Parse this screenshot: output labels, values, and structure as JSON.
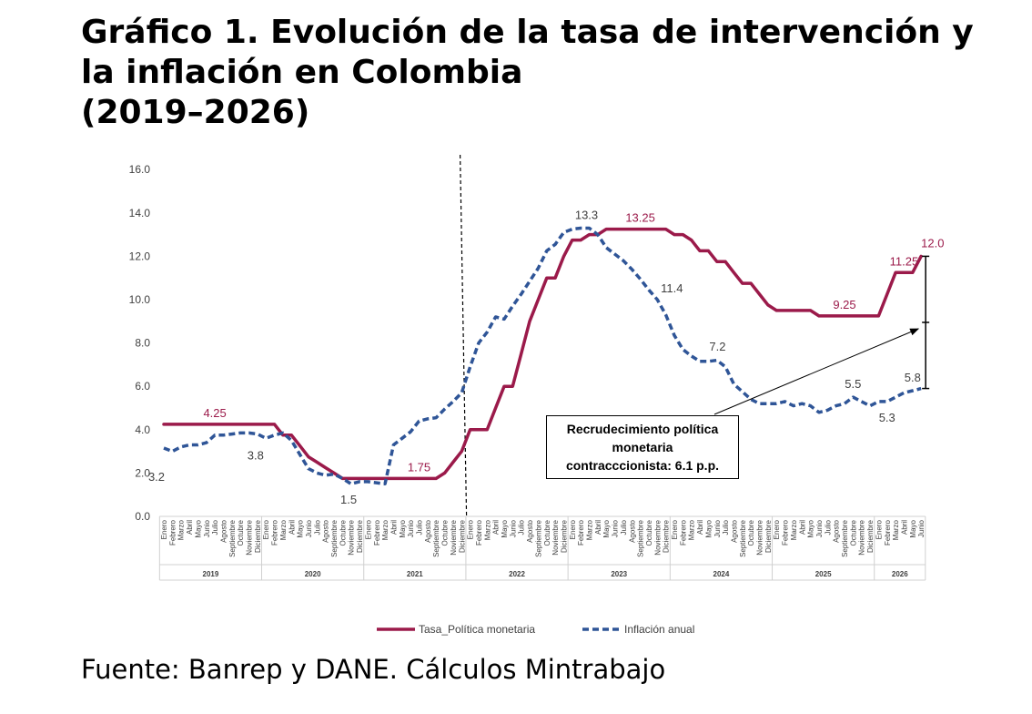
{
  "title_lines": [
    "Gráfico 1. Evolución de la tasa de intervención y",
    "la inflación en Colombia",
    "(2019–2026)"
  ],
  "source": "Fuente: Banrep y DANE. Cálculos Mintrabajo",
  "callout_lines": [
    "Recrudecimiento política",
    "monetaria",
    "contracccionista: 6.1 p.p."
  ],
  "chart_data": {
    "type": "line",
    "ylim": [
      0,
      16
    ],
    "ytick_labels": [
      "0.0",
      "2.0",
      "4.0",
      "6.0",
      "8.0",
      "10.0",
      "12.0",
      "14.0",
      "16.0"
    ],
    "months": [
      "Enero",
      "Febrero",
      "Marzo",
      "Abril",
      "Mayo",
      "Junio",
      "Julio",
      "Agosto",
      "Septiembre",
      "Octubre",
      "Noviembre",
      "Diciembre"
    ],
    "years": [
      {
        "label": "2019",
        "months": 12
      },
      {
        "label": "2020",
        "months": 12
      },
      {
        "label": "2021",
        "months": 12
      },
      {
        "label": "2022",
        "months": 12
      },
      {
        "label": "2023",
        "months": 12
      },
      {
        "label": "2024",
        "months": 12
      },
      {
        "label": "2025",
        "months": 12
      },
      {
        "label": "2026",
        "months": 6
      }
    ],
    "series": [
      {
        "name": "Tasa_Política monetaria",
        "color": "#9b1a4a",
        "style": "solid",
        "values": [
          4.25,
          4.25,
          4.25,
          4.25,
          4.25,
          4.25,
          4.25,
          4.25,
          4.25,
          4.25,
          4.25,
          4.25,
          4.25,
          4.25,
          3.75,
          3.75,
          3.25,
          2.75,
          2.5,
          2.25,
          2.0,
          1.75,
          1.75,
          1.75,
          1.75,
          1.75,
          1.75,
          1.75,
          1.75,
          1.75,
          1.75,
          1.75,
          1.75,
          2.0,
          2.5,
          3.0,
          4.0,
          4.0,
          4.0,
          5.0,
          6.0,
          6.0,
          7.5,
          9.0,
          10.0,
          11.0,
          11.0,
          12.0,
          12.75,
          12.75,
          13.0,
          13.0,
          13.25,
          13.25,
          13.25,
          13.25,
          13.25,
          13.25,
          13.25,
          13.25,
          13.0,
          13.0,
          12.75,
          12.25,
          12.25,
          11.75,
          11.75,
          11.25,
          10.75,
          10.75,
          10.25,
          9.75,
          9.5,
          9.5,
          9.5,
          9.5,
          9.5,
          9.25,
          9.25,
          9.25,
          9.25,
          9.25,
          9.25,
          9.25,
          9.25,
          10.25,
          11.25,
          11.25,
          11.25,
          12.0
        ]
      },
      {
        "name": "Inflación anual",
        "color": "#2f5597",
        "style": "dashed",
        "values": [
          3.15,
          3.0,
          3.2,
          3.3,
          3.3,
          3.4,
          3.75,
          3.75,
          3.8,
          3.85,
          3.85,
          3.8,
          3.6,
          3.75,
          3.85,
          3.5,
          2.85,
          2.2,
          2.0,
          1.9,
          1.95,
          1.75,
          1.5,
          1.6,
          1.6,
          1.55,
          1.5,
          3.3,
          3.6,
          3.9,
          4.4,
          4.5,
          4.55,
          4.95,
          5.3,
          5.7,
          6.9,
          8.0,
          8.5,
          9.2,
          9.1,
          9.7,
          10.25,
          10.85,
          11.45,
          12.25,
          12.55,
          13.1,
          13.25,
          13.3,
          13.3,
          13.0,
          12.4,
          12.1,
          11.8,
          11.4,
          10.95,
          10.45,
          10.0,
          9.3,
          8.35,
          7.7,
          7.4,
          7.15,
          7.15,
          7.2,
          6.9,
          6.1,
          5.75,
          5.4,
          5.2,
          5.2,
          5.2,
          5.3,
          5.1,
          5.2,
          5.1,
          4.8,
          4.9,
          5.1,
          5.2,
          5.5,
          5.3,
          5.1,
          5.3,
          5.3,
          5.5,
          5.7,
          5.8,
          5.9
        ]
      }
    ],
    "annotations": {
      "tasa": [
        "4.25",
        "1.75",
        "13.25",
        "9.25",
        "11.25",
        "12.0"
      ],
      "inflacion": [
        "3.2",
        "3.8",
        "1.5",
        "13.3",
        "11.4",
        "7.2",
        "5.5",
        "5.3",
        "5.8"
      ]
    },
    "legend": [
      "Tasa_Política monetaria",
      "Inflación anual"
    ],
    "legend_position": "bottom",
    "grid": false
  }
}
